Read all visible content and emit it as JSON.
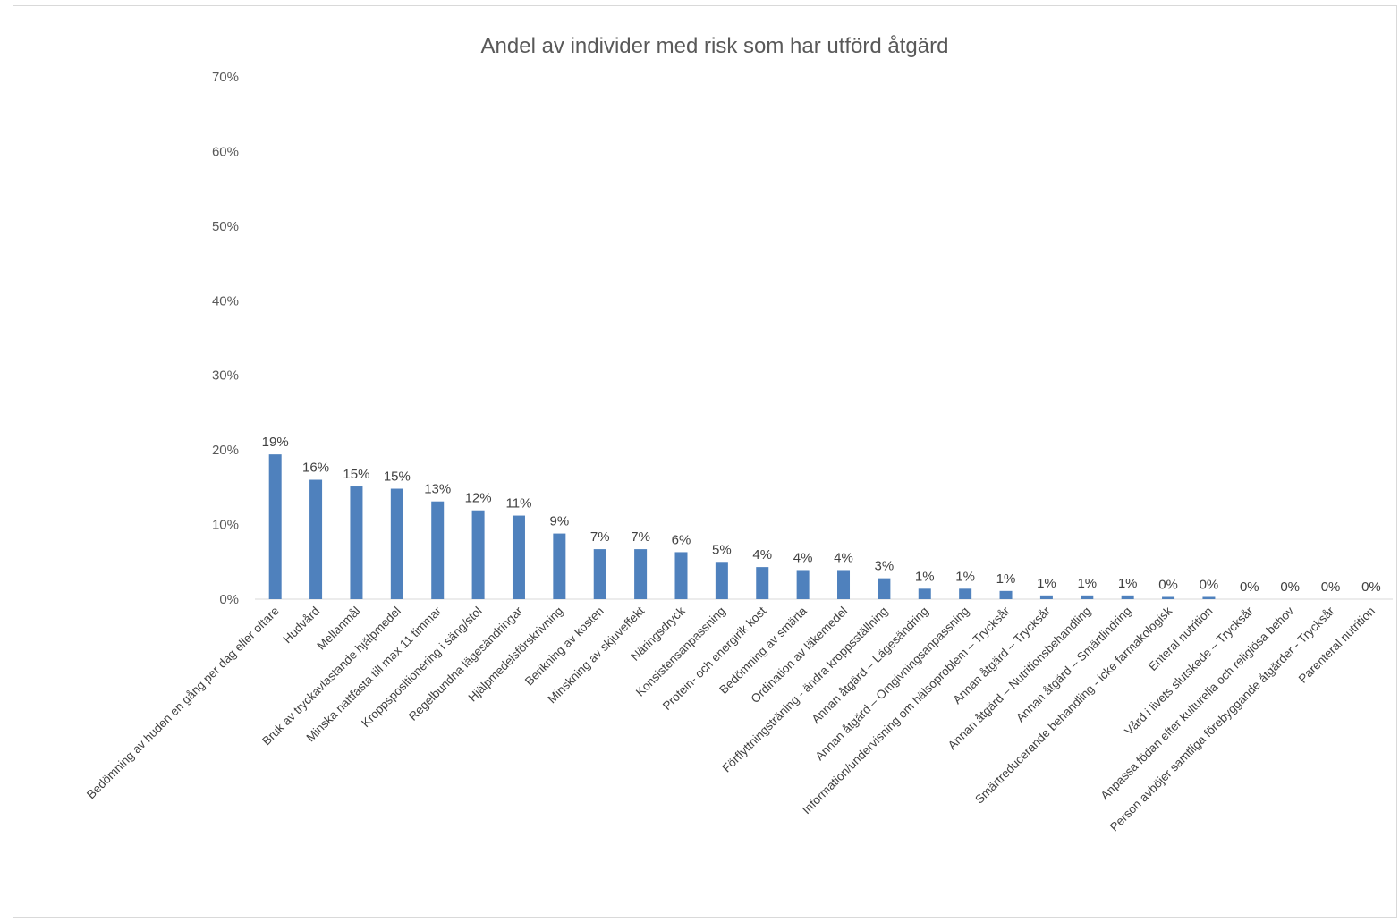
{
  "chart_data": {
    "type": "bar",
    "title": "Andel av individer med risk som har utförd åtgärd",
    "xlabel": "",
    "ylabel": "",
    "ylim": [
      0,
      0.7
    ],
    "yticks": [
      "0%",
      "10%",
      "20%",
      "30%",
      "40%",
      "50%",
      "60%",
      "70%"
    ],
    "grid": false,
    "legend": "none",
    "bar_color": "#4f81bd",
    "categories": [
      "Bedömning av huden en gång per dag eller oftare",
      "Hudvård",
      "Mellanmål",
      "Bruk av tryckavlastande hjälpmedel",
      "Minska nattfasta till max 11 timmar",
      "Kroppspositionering i säng/stol",
      "Regelbundna lägesändringar",
      "Hjälpmedelsförskrivning",
      "Berikning av kosten",
      "Minskning av skjuveffekt",
      "Näringsdryck",
      "Konsistensanpassning",
      "Protein- och energirik kost",
      "Bedömning av smärta",
      "Ordination av läkemedel",
      "Förflyttningsträning - ändra kroppsställning",
      "Annan åtgärd – Lägesändring",
      "Annan åtgärd – Omgivningsanpassning",
      "Information/undervisning om hälsoproblem – Trycksår",
      "Annan åtgärd – Trycksår",
      "Annan åtgärd – Nutritionsbehandling",
      "Annan åtgärd – Smärtlindring",
      "Smärtreducerande behandling - icke farmakologisk",
      "Enteral nutrition",
      "Vård i livets slutskede – Trycksår",
      "Anpassa födan efter kulturella och religiösa behov",
      "Person avböjer samtliga förebyggande åtgärder - Trycksår",
      "Parenteral nutrition"
    ],
    "values": [
      0.194,
      0.16,
      0.151,
      0.148,
      0.131,
      0.119,
      0.112,
      0.088,
      0.067,
      0.067,
      0.063,
      0.05,
      0.043,
      0.039,
      0.039,
      0.028,
      0.014,
      0.014,
      0.011,
      0.005,
      0.005,
      0.005,
      0.003,
      0.003,
      0.0,
      0.0,
      0.0,
      0.0
    ],
    "data_labels": [
      "19%",
      "16%",
      "15%",
      "15%",
      "13%",
      "12%",
      "11%",
      "9%",
      "7%",
      "7%",
      "6%",
      "5%",
      "4%",
      "4%",
      "4%",
      "3%",
      "1%",
      "1%",
      "1%",
      "1%",
      "1%",
      "1%",
      "0%",
      "0%",
      "0%",
      "0%",
      "0%",
      "0%"
    ]
  }
}
